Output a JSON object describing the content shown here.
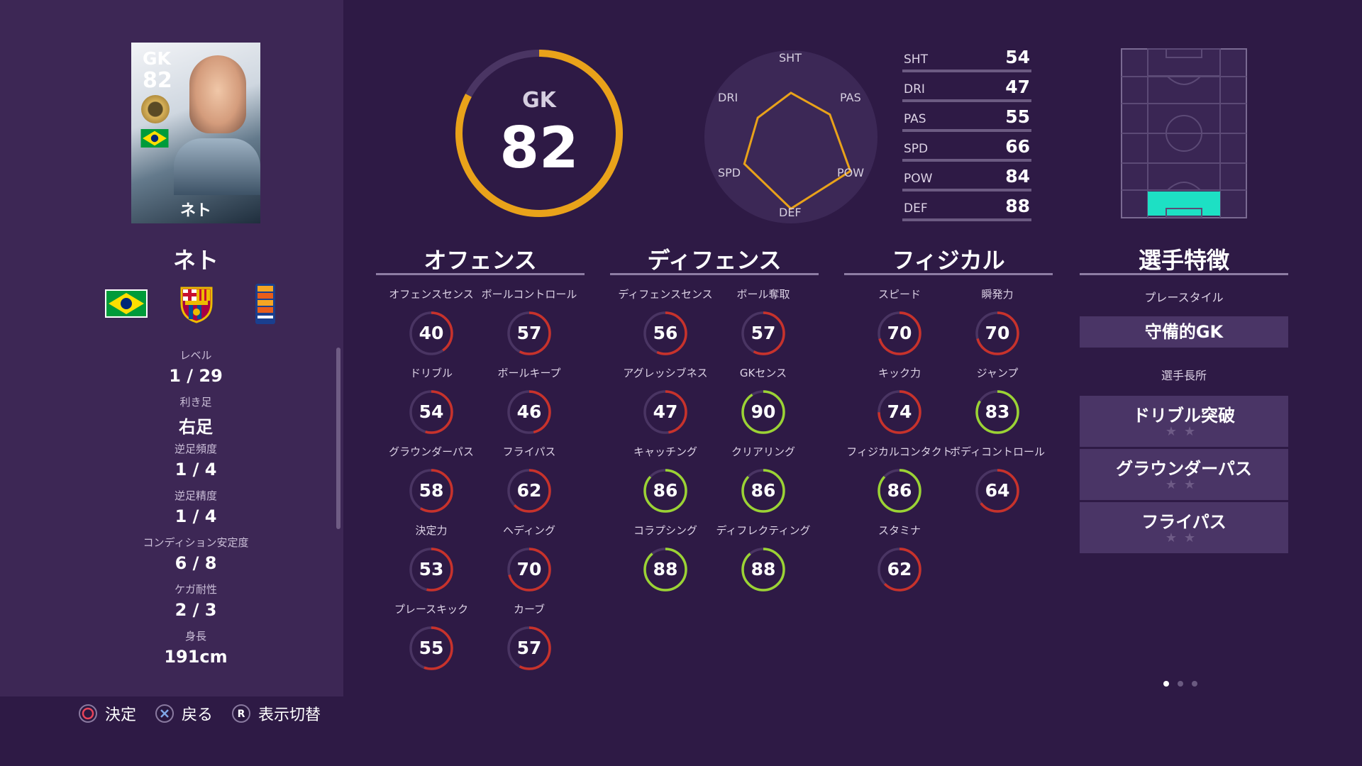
{
  "player": {
    "card_position": "GK",
    "card_rating": "82",
    "card_name": "ネト",
    "name": "ネト"
  },
  "info": [
    {
      "label": "レベル",
      "value": "1 / 29"
    },
    {
      "label": "利き足",
      "value": "右足"
    },
    {
      "label": "逆足頻度",
      "value": "1 / 4"
    },
    {
      "label": "逆足精度",
      "value": "1 / 4"
    },
    {
      "label": "コンディション安定度",
      "value": "6 / 8"
    },
    {
      "label": "ケガ耐性",
      "value": "2 / 3"
    },
    {
      "label": "身長",
      "value": "191cm"
    }
  ],
  "hints": [
    {
      "icon": "circle-button-icon",
      "label": "決定"
    },
    {
      "icon": "cross-button-icon",
      "label": "戻る"
    },
    {
      "icon": "r-button-icon",
      "glyph": "R",
      "label": "表示切替"
    }
  ],
  "overall": {
    "position": "GK",
    "rating": "82",
    "value": 82,
    "max": 99
  },
  "radar": {
    "labels": [
      "SHT",
      "PAS",
      "POW",
      "DEF",
      "SPD",
      "DRI"
    ],
    "values": [
      54,
      55,
      84,
      88,
      66,
      47
    ]
  },
  "summary": [
    {
      "key": "SHT",
      "value": "54"
    },
    {
      "key": "DRI",
      "value": "47"
    },
    {
      "key": "PAS",
      "value": "55"
    },
    {
      "key": "SPD",
      "value": "66"
    },
    {
      "key": "POW",
      "value": "84"
    },
    {
      "key": "DEF",
      "value": "88"
    }
  ],
  "sections": {
    "offense": {
      "title": "オフェンス",
      "stats": [
        {
          "label": "オフェンスセンス",
          "value": 40
        },
        {
          "label": "ボールコントロール",
          "value": 57
        },
        {
          "label": "ドリブル",
          "value": 54
        },
        {
          "label": "ボールキープ",
          "value": 46
        },
        {
          "label": "グラウンダーパス",
          "value": 58
        },
        {
          "label": "フライパス",
          "value": 62
        },
        {
          "label": "決定力",
          "value": 53
        },
        {
          "label": "ヘディング",
          "value": 70
        },
        {
          "label": "プレースキック",
          "value": 55
        },
        {
          "label": "カーブ",
          "value": 57
        }
      ]
    },
    "defense": {
      "title": "ディフェンス",
      "stats": [
        {
          "label": "ディフェンスセンス",
          "value": 56
        },
        {
          "label": "ボール奪取",
          "value": 57
        },
        {
          "label": "アグレッシブネス",
          "value": 47
        },
        {
          "label": "GKセンス",
          "value": 90
        },
        {
          "label": "キャッチング",
          "value": 86
        },
        {
          "label": "クリアリング",
          "value": 86
        },
        {
          "label": "コラプシング",
          "value": 88
        },
        {
          "label": "ディフレクティング",
          "value": 88
        }
      ]
    },
    "physical": {
      "title": "フィジカル",
      "stats": [
        {
          "label": "スピード",
          "value": 70
        },
        {
          "label": "瞬発力",
          "value": 70
        },
        {
          "label": "キック力",
          "value": 74
        },
        {
          "label": "ジャンプ",
          "value": 83
        },
        {
          "label": "フィジカルコンタクト",
          "value": 86
        },
        {
          "label": "ボディコントロール",
          "value": 64
        },
        {
          "label": "スタミナ",
          "value": 62
        }
      ]
    }
  },
  "features": {
    "title": "選手特徴",
    "playstyle_label": "プレースタイル",
    "playstyle": "守備的GK",
    "strengths_label": "選手長所",
    "strengths": [
      {
        "name": "ドリブル突破",
        "stars": "★★"
      },
      {
        "name": "グラウンダーパス",
        "stars": "★★"
      },
      {
        "name": "フライパス",
        "stars": "★★"
      }
    ]
  },
  "colors": {
    "red": "#c8322b",
    "orange": "#e9a21a",
    "green": "#9bd334",
    "track": "#4a3563",
    "highlight": "#1de0c4"
  },
  "pager": {
    "count": 3,
    "active": 0
  }
}
